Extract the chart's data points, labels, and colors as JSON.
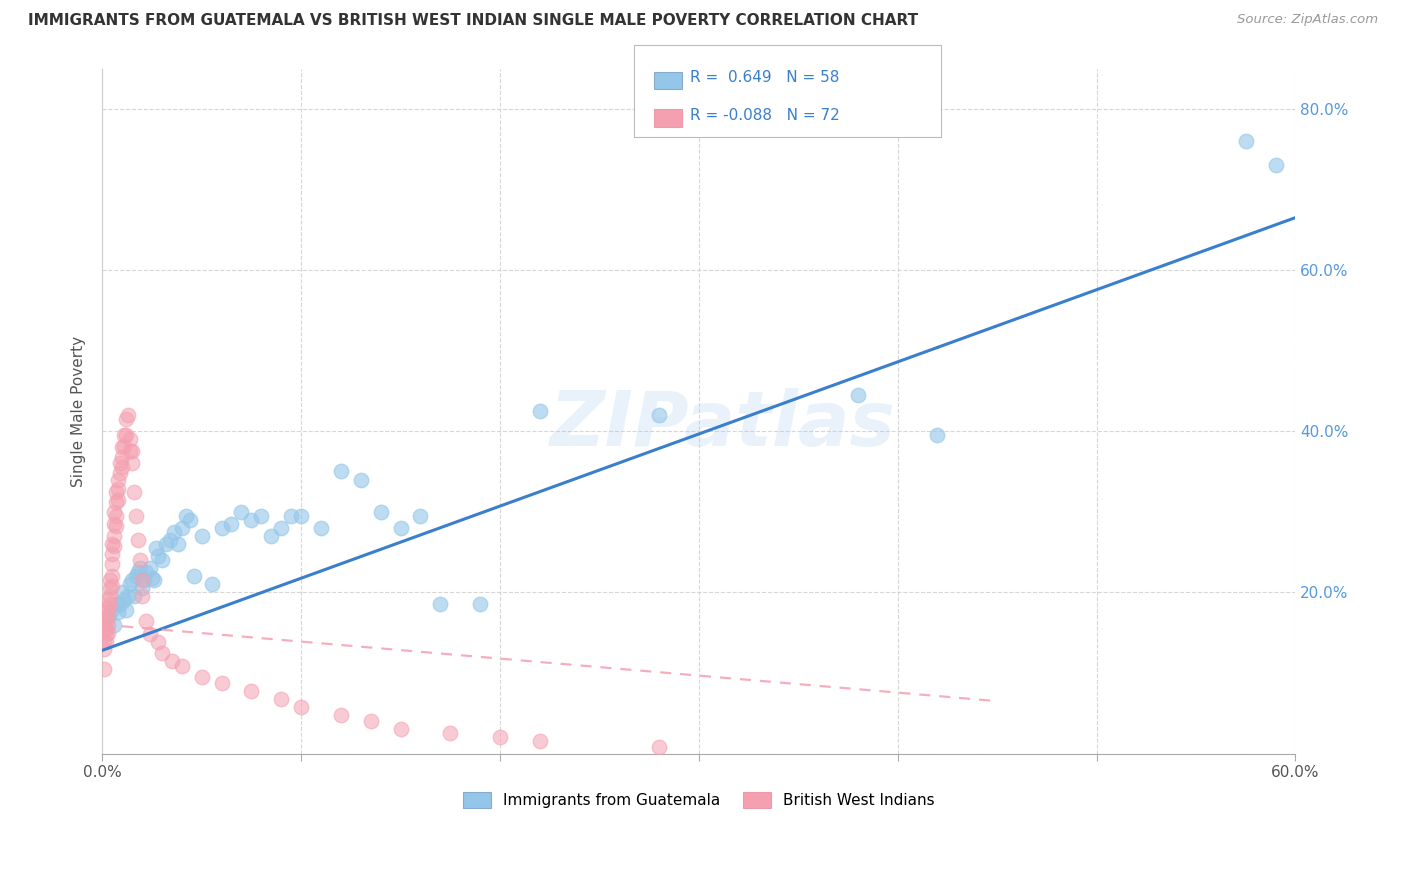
{
  "title": "IMMIGRANTS FROM GUATEMALA VS BRITISH WEST INDIAN SINGLE MALE POVERTY CORRELATION CHART",
  "source": "Source: ZipAtlas.com",
  "ylabel": "Single Male Poverty",
  "legend_blue_r": "0.649",
  "legend_blue_n": "58",
  "legend_pink_r": "-0.088",
  "legend_pink_n": "72",
  "legend_blue_label": "Immigrants from Guatemala",
  "legend_pink_label": "British West Indians",
  "watermark": "ZIPatlas",
  "blue_color": "#93C6E8",
  "pink_color": "#F4A0B0",
  "blue_line_color": "#3A7FCC",
  "pink_line_color": "#F4A0B0",
  "background_color": "#FFFFFF",
  "grid_color": "#CCCCCC",
  "title_color": "#333333",
  "source_color": "#999999",
  "right_tick_color": "#5599DD",
  "xlim": [
    0.0,
    0.6
  ],
  "ylim": [
    0.0,
    0.85
  ],
  "yticks": [
    0.0,
    0.2,
    0.4,
    0.6,
    0.8
  ],
  "ytick_labels_right": [
    "",
    "20.0%",
    "40.0%",
    "60.0%",
    "80.0%"
  ],
  "blue_line_x": [
    0.0,
    0.6
  ],
  "blue_line_y": [
    0.128,
    0.665
  ],
  "pink_line_x": [
    0.0,
    0.45
  ],
  "pink_line_y": [
    0.16,
    0.065
  ],
  "blue_scatter_x": [
    0.003,
    0.005,
    0.006,
    0.007,
    0.008,
    0.009,
    0.01,
    0.011,
    0.012,
    0.013,
    0.014,
    0.015,
    0.016,
    0.017,
    0.018,
    0.019,
    0.02,
    0.021,
    0.022,
    0.024,
    0.025,
    0.026,
    0.027,
    0.028,
    0.03,
    0.032,
    0.034,
    0.036,
    0.038,
    0.04,
    0.042,
    0.044,
    0.046,
    0.05,
    0.055,
    0.06,
    0.065,
    0.07,
    0.075,
    0.08,
    0.085,
    0.09,
    0.095,
    0.1,
    0.11,
    0.12,
    0.13,
    0.14,
    0.15,
    0.16,
    0.17,
    0.19,
    0.22,
    0.28,
    0.38,
    0.42,
    0.575,
    0.59
  ],
  "blue_scatter_y": [
    0.168,
    0.178,
    0.16,
    0.185,
    0.175,
    0.185,
    0.2,
    0.19,
    0.178,
    0.195,
    0.21,
    0.215,
    0.195,
    0.22,
    0.225,
    0.23,
    0.205,
    0.215,
    0.225,
    0.23,
    0.218,
    0.215,
    0.255,
    0.245,
    0.24,
    0.26,
    0.265,
    0.275,
    0.26,
    0.28,
    0.295,
    0.29,
    0.22,
    0.27,
    0.21,
    0.28,
    0.285,
    0.3,
    0.29,
    0.295,
    0.27,
    0.28,
    0.295,
    0.295,
    0.28,
    0.35,
    0.34,
    0.3,
    0.28,
    0.295,
    0.185,
    0.185,
    0.425,
    0.42,
    0.445,
    0.395,
    0.76,
    0.73
  ],
  "pink_scatter_x": [
    0.001,
    0.001,
    0.001,
    0.001,
    0.002,
    0.002,
    0.002,
    0.002,
    0.002,
    0.003,
    0.003,
    0.003,
    0.003,
    0.003,
    0.004,
    0.004,
    0.004,
    0.004,
    0.005,
    0.005,
    0.005,
    0.005,
    0.005,
    0.006,
    0.006,
    0.006,
    0.006,
    0.007,
    0.007,
    0.007,
    0.007,
    0.008,
    0.008,
    0.008,
    0.009,
    0.009,
    0.01,
    0.01,
    0.01,
    0.011,
    0.011,
    0.012,
    0.012,
    0.013,
    0.014,
    0.014,
    0.015,
    0.015,
    0.016,
    0.017,
    0.018,
    0.019,
    0.02,
    0.02,
    0.022,
    0.024,
    0.028,
    0.03,
    0.035,
    0.04,
    0.05,
    0.06,
    0.075,
    0.09,
    0.1,
    0.12,
    0.135,
    0.15,
    0.175,
    0.2,
    0.22,
    0.28
  ],
  "pink_scatter_y": [
    0.155,
    0.14,
    0.13,
    0.105,
    0.175,
    0.168,
    0.155,
    0.148,
    0.138,
    0.19,
    0.18,
    0.172,
    0.16,
    0.15,
    0.215,
    0.205,
    0.195,
    0.185,
    0.26,
    0.248,
    0.235,
    0.22,
    0.208,
    0.3,
    0.285,
    0.27,
    0.258,
    0.325,
    0.312,
    0.295,
    0.282,
    0.34,
    0.328,
    0.315,
    0.36,
    0.348,
    0.38,
    0.368,
    0.355,
    0.395,
    0.382,
    0.415,
    0.395,
    0.42,
    0.39,
    0.375,
    0.375,
    0.36,
    0.325,
    0.295,
    0.265,
    0.24,
    0.215,
    0.195,
    0.165,
    0.148,
    0.138,
    0.125,
    0.115,
    0.108,
    0.095,
    0.088,
    0.078,
    0.068,
    0.058,
    0.048,
    0.04,
    0.03,
    0.025,
    0.02,
    0.015,
    0.008
  ]
}
